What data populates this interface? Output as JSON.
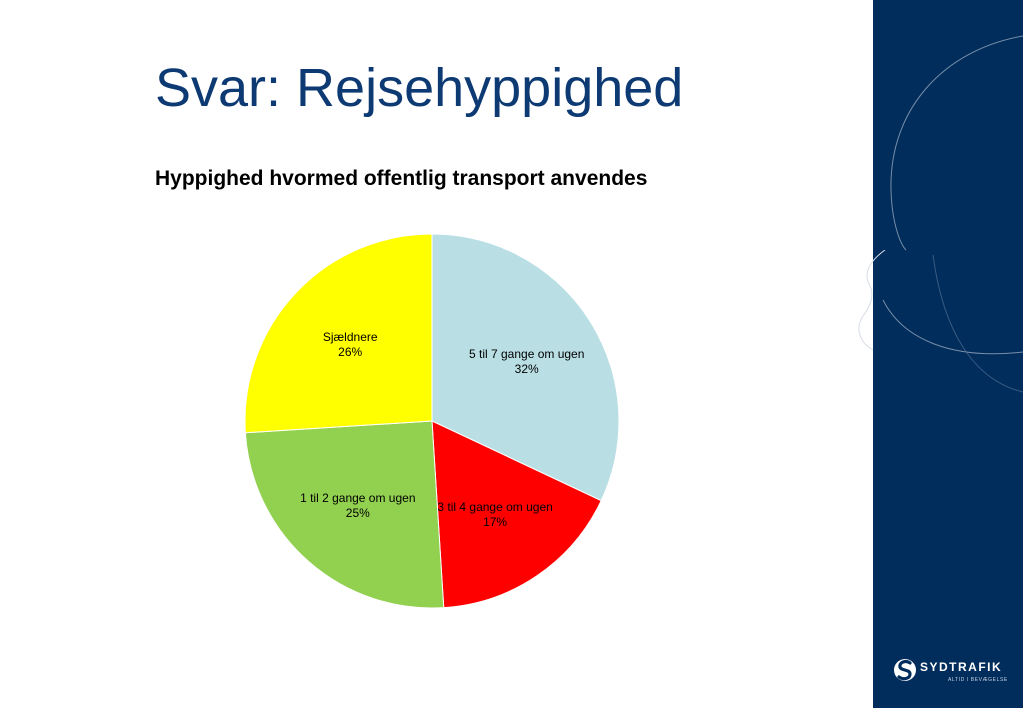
{
  "slide": {
    "title": "Svar: Rejsehyppighed"
  },
  "chart_data": {
    "type": "pie",
    "title": "Hyppighed hvormed offentlig transport anvendes",
    "start": "12 o'clock",
    "direction": "clockwise",
    "slices": [
      {
        "label": "5 til 7 gange om ugen",
        "value": 32,
        "display": "32%",
        "color": "#b9dfe4"
      },
      {
        "label": "3 til 4 gange om ugen",
        "value": 17,
        "display": "17%",
        "color": "#ff0000"
      },
      {
        "label": "1 til 2 gange om ugen",
        "value": 25,
        "display": "25%",
        "color": "#92d050"
      },
      {
        "label": "Sjældnere",
        "value": 26,
        "display": "26%",
        "color": "#ffff00"
      }
    ]
  },
  "brand": {
    "name": "SYDTRAFIK",
    "tagline": "ALTID I BEVÆGELSE",
    "panel_color": "#002d5c",
    "title_color": "#0d3a73"
  }
}
